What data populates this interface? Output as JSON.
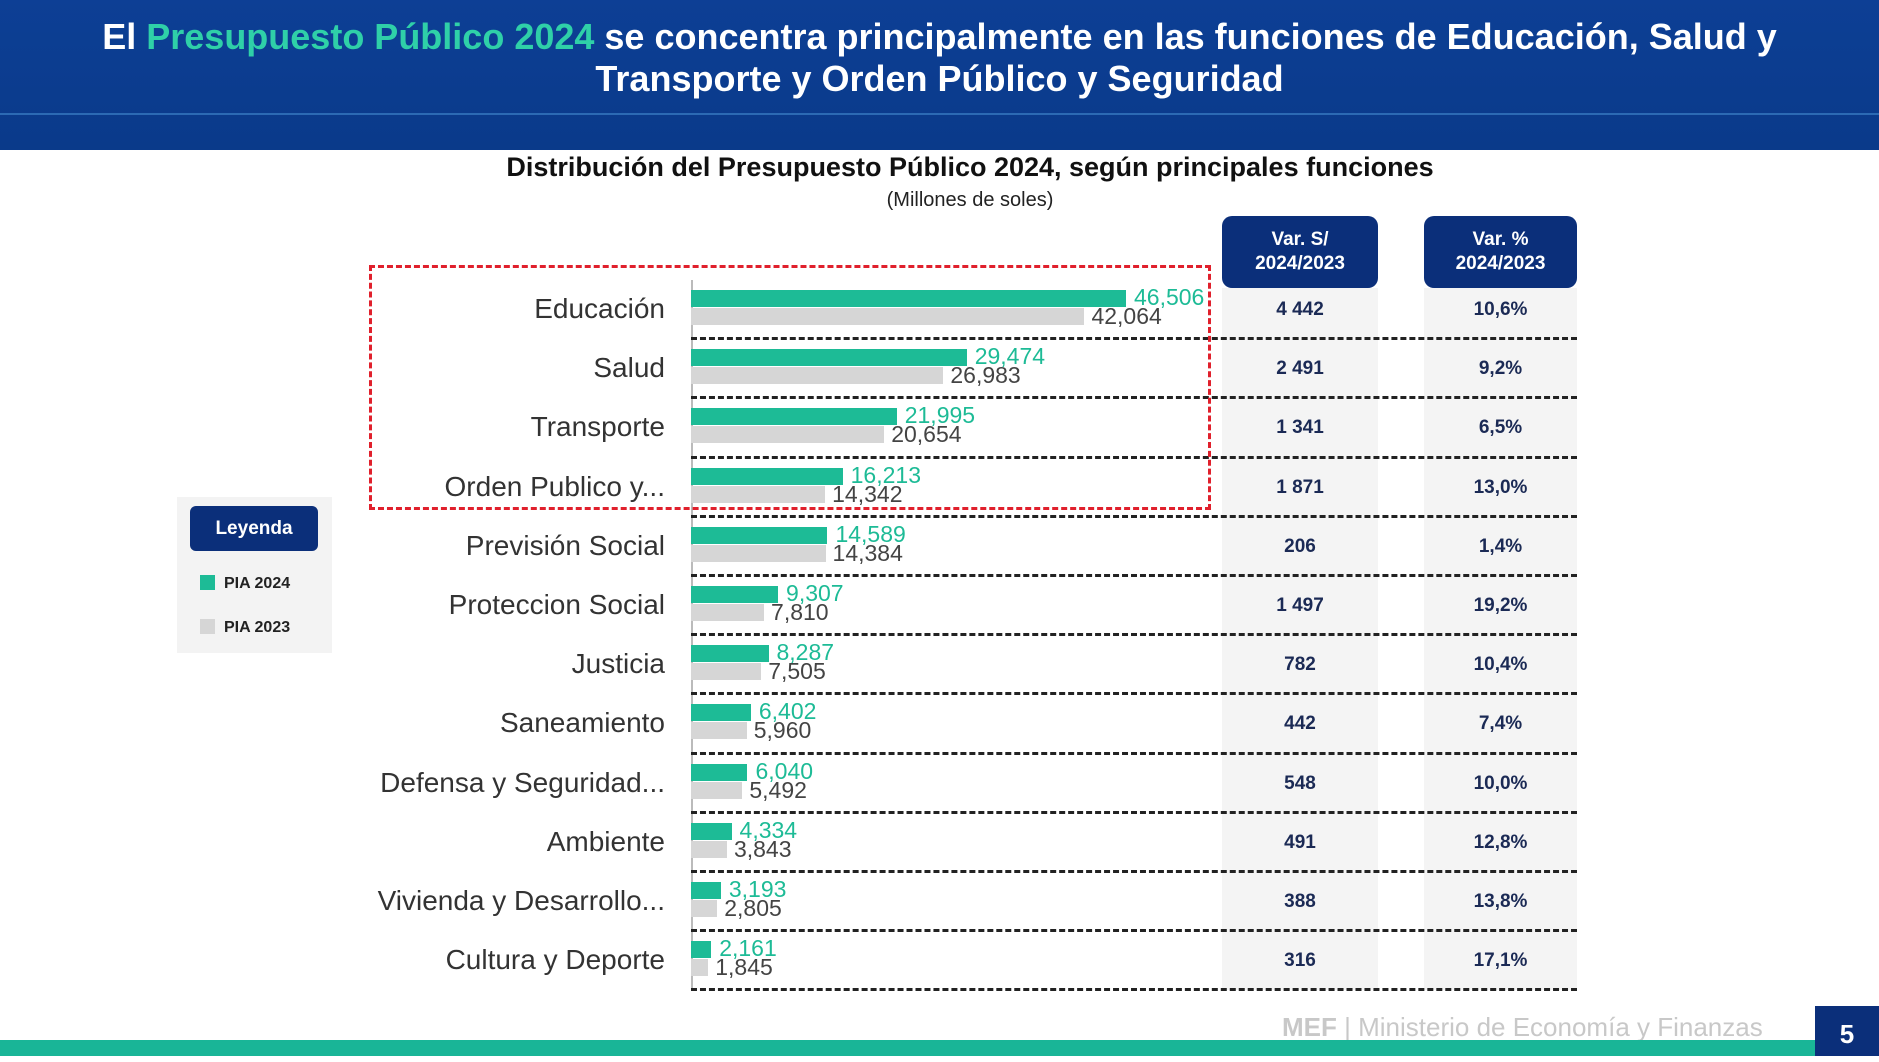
{
  "header": {
    "line1_pre": "El ",
    "line1_accent": "Presupuesto Público 2024",
    "line1_post": " se concentra principalmente en las funciones de Educación, Salud y",
    "line2": "Transporte y Orden Público y Seguridad"
  },
  "legend": {
    "title": "Leyenda",
    "items": [
      {
        "label": "PIA 2024",
        "color": "#1dbb96"
      },
      {
        "label": "PIA 2023",
        "color": "#d6d6d6"
      }
    ]
  },
  "table_headers": {
    "var_abs": [
      "Var. S/",
      "2024/2023"
    ],
    "var_pct": [
      "Var. %",
      "2024/2023"
    ]
  },
  "footer": {
    "brand": "MEF",
    "ministry": "Ministerio de Economía y Finanzas",
    "page": "5"
  },
  "colors": {
    "header": "#0b3a8a",
    "accent": "#2fd0a8",
    "pia2024": "#1dbb96",
    "pia2023": "#d6d6d6",
    "highlight": "#e0202c"
  },
  "chart_data": {
    "type": "bar",
    "orientation": "horizontal",
    "title": "Distribución del Presupuesto Público 2024, según principales funciones",
    "subtitle": "(Millones de soles)",
    "categories": [
      "Educación",
      "Salud",
      "Transporte",
      "Orden Publico y...",
      "Previsión Social",
      "Proteccion Social",
      "Justicia",
      "Saneamiento",
      "Defensa y Seguridad...",
      "Ambiente",
      "Vivienda y Desarrollo...",
      "Cultura y Deporte"
    ],
    "series": [
      {
        "name": "PIA 2024",
        "values": [
          46506,
          29474,
          21995,
          16213,
          14589,
          9307,
          8287,
          6402,
          6040,
          4334,
          3193,
          2161
        ],
        "labels": [
          "46,506",
          "29,474",
          "21,995",
          "16,213",
          "14,589",
          "9,307",
          "8,287",
          "6,402",
          "6,040",
          "4,334",
          "3,193",
          "2,161"
        ]
      },
      {
        "name": "PIA 2023",
        "values": [
          42064,
          26983,
          20654,
          14342,
          14384,
          7810,
          7505,
          5960,
          5492,
          3843,
          2805,
          1845
        ],
        "labels": [
          "42,064",
          "26,983",
          "20,654",
          "14,342",
          "14,384",
          "7,810",
          "7,505",
          "5,960",
          "5,492",
          "3,843",
          "2,805",
          "1,845"
        ]
      }
    ],
    "var_abs": [
      "4 442",
      "2 491",
      "1 341",
      "1 871",
      "206",
      "1 497",
      "782",
      "442",
      "548",
      "491",
      "388",
      "316"
    ],
    "var_pct": [
      "10,6%",
      "9,2%",
      "6,5%",
      "13,0%",
      "1,4%",
      "19,2%",
      "10,4%",
      "7,4%",
      "10,0%",
      "12,8%",
      "13,8%",
      "17,1%"
    ],
    "highlighted_categories": [
      "Educación",
      "Salud",
      "Transporte",
      "Orden Publico y..."
    ],
    "grid": "dashed row separators"
  }
}
